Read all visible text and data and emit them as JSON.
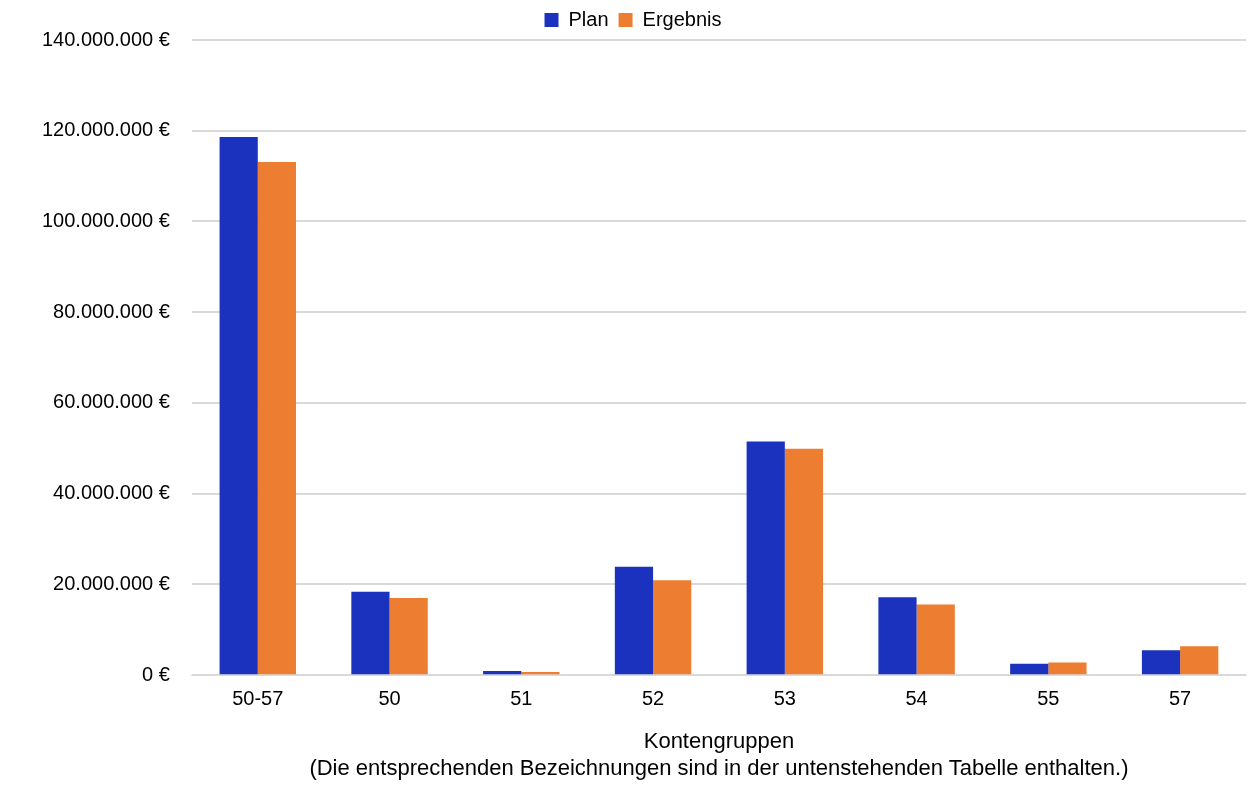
{
  "chart_data": {
    "type": "bar",
    "xlabel": "Kontengruppen",
    "annotations": [
      "(Die entsprechenden Bezeichnungen sind in der untenstehenden Tabelle enthalten.)"
    ],
    "categories": [
      "50-57",
      "50",
      "51",
      "52",
      "53",
      "54",
      "55",
      "57"
    ],
    "series": [
      {
        "name": "Plan",
        "color": "#1a32bd",
        "values": [
          118600000,
          18400000,
          900000,
          23900000,
          51500000,
          17200000,
          2500000,
          5500000
        ]
      },
      {
        "name": "Ergebnis",
        "color": "#ed7d31",
        "values": [
          113100000,
          17000000,
          700000,
          20900000,
          49900000,
          15600000,
          2800000,
          6400000
        ]
      }
    ],
    "ylim": [
      0,
      140000000
    ],
    "yticks": [
      {
        "value": 0,
        "label": "0 €"
      },
      {
        "value": 20000000,
        "label": "20.000.000 €"
      },
      {
        "value": 40000000,
        "label": "40.000.000 €"
      },
      {
        "value": 60000000,
        "label": "60.000.000 €"
      },
      {
        "value": 80000000,
        "label": "80.000.000 €"
      },
      {
        "value": 100000000,
        "label": "100.000.000 €"
      },
      {
        "value": 120000000,
        "label": "120.000.000 €"
      },
      {
        "value": 140000000,
        "label": "140.000.000 €"
      }
    ],
    "grid": "y",
    "legend": "top"
  }
}
